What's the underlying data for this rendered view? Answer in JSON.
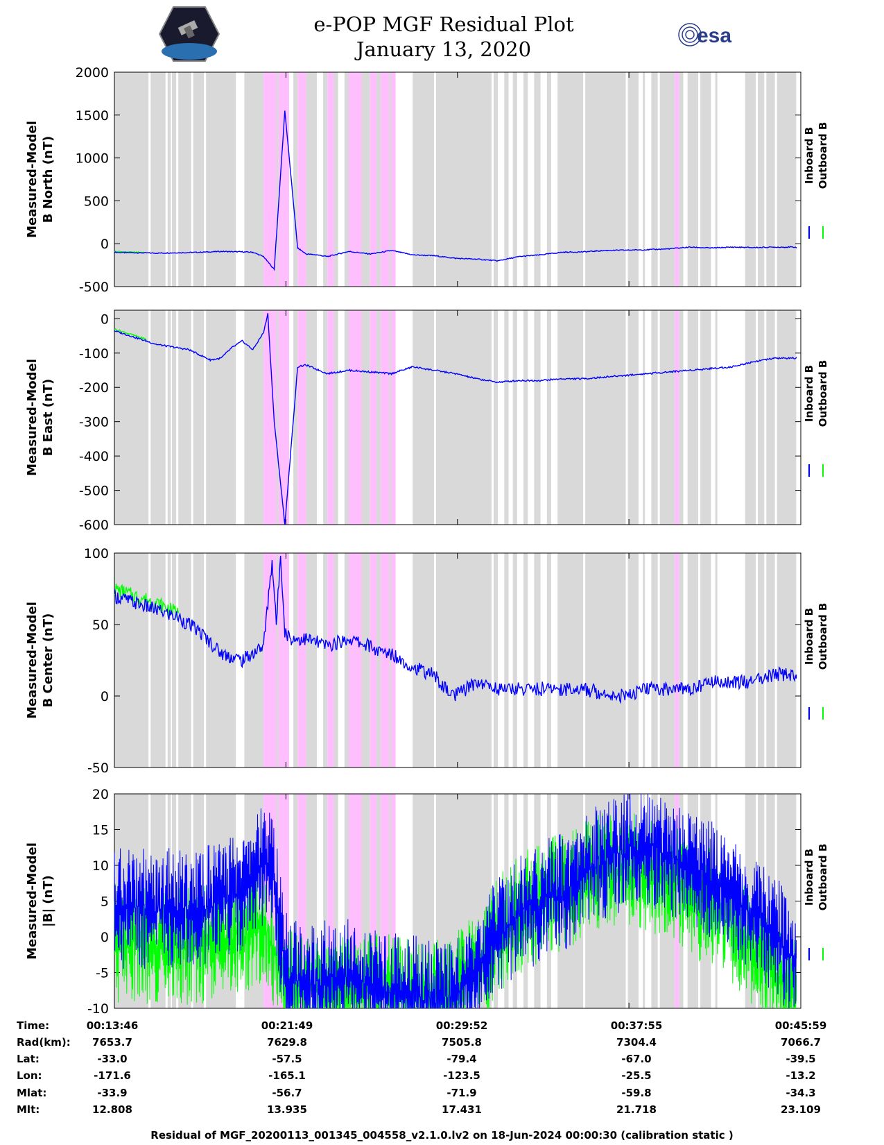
{
  "header": {
    "title_line1": "e-POP MGF Residual Plot",
    "title_line2": "January 13, 2020",
    "esa_text": "esa"
  },
  "colors": {
    "inboard": "#0000ff",
    "outboard": "#00ff00",
    "gap_shade": "#d9d9d9",
    "event_shade": "#ffbfff",
    "axes": "#000000"
  },
  "chart_data": [
    {
      "type": "line",
      "ylabel_line1": "Measured-Model",
      "ylabel_line2": "B North (nT)",
      "ylim": [
        -500,
        2000
      ],
      "yticks": [
        -500,
        0,
        500,
        1000,
        1500,
        2000
      ],
      "legend": [
        "Inboard B",
        "Outboard B"
      ],
      "series": [
        {
          "name": "Inboard B",
          "x": [
            0,
            0.5,
            1,
            2,
            3,
            4,
            5,
            6,
            6.5,
            7,
            7.5,
            8,
            8.6,
            9,
            9.5,
            10,
            11,
            12,
            13,
            14,
            15,
            16,
            17,
            18,
            19,
            20,
            21,
            22,
            23,
            24,
            25,
            26,
            27,
            28,
            29,
            30,
            31,
            32
          ],
          "values": [
            -100,
            -105,
            -105,
            -110,
            -105,
            -100,
            -90,
            -95,
            -100,
            -150,
            -300,
            1550,
            -50,
            -120,
            -130,
            -150,
            -90,
            -120,
            -80,
            -130,
            -140,
            -170,
            -180,
            -200,
            -150,
            -130,
            -100,
            -95,
            -80,
            -75,
            -70,
            -60,
            -40,
            -50,
            -40,
            -45,
            -40,
            -40
          ]
        },
        {
          "name": "Outboard B",
          "x": [
            0,
            0.5,
            1,
            1.4
          ],
          "values": [
            -90,
            -95,
            -100,
            -100
          ]
        }
      ]
    },
    {
      "type": "line",
      "ylabel_line1": "Measured-Model",
      "ylabel_line2": "B East (nT)",
      "ylim": [
        -600,
        25
      ],
      "yticks": [
        -600,
        -500,
        -400,
        -300,
        -200,
        -100,
        0
      ],
      "legend": [
        "Inboard B",
        "Outboard B"
      ],
      "series": [
        {
          "name": "Inboard B",
          "x": [
            0,
            1,
            2,
            3,
            3.5,
            4,
            4.5,
            5,
            5.5,
            6,
            6.5,
            7,
            7.2,
            7.5,
            8,
            8.6,
            9,
            10,
            11,
            12,
            13,
            14,
            15,
            16,
            17,
            18,
            19,
            20,
            21,
            22,
            23,
            24,
            25,
            26,
            27,
            28,
            29,
            30,
            31,
            32
          ],
          "values": [
            -35,
            -55,
            -75,
            -85,
            -90,
            -105,
            -120,
            -115,
            -85,
            -65,
            -90,
            -40,
            15,
            -300,
            -600,
            -140,
            -135,
            -160,
            -150,
            -155,
            -160,
            -140,
            -150,
            -160,
            -175,
            -185,
            -180,
            -180,
            -175,
            -175,
            -170,
            -165,
            -160,
            -155,
            -150,
            -145,
            -140,
            -125,
            -115,
            -115
          ]
        },
        {
          "name": "Outboard B",
          "x": [
            0,
            1,
            1.5
          ],
          "values": [
            -30,
            -50,
            -60
          ]
        }
      ]
    },
    {
      "type": "line",
      "ylabel_line1": "Measured-Model",
      "ylabel_line2": "B Center (nT)",
      "ylim": [
        -50,
        100
      ],
      "yticks": [
        -50,
        0,
        50,
        100
      ],
      "legend": [
        "Inboard B",
        "Outboard B"
      ],
      "series": [
        {
          "name": "Inboard B",
          "x": [
            0,
            1,
            2,
            3,
            4,
            5,
            6,
            7,
            7.4,
            7.6,
            7.8,
            8,
            8.3,
            9,
            10,
            11,
            12,
            12.5,
            13,
            14,
            15,
            15.5,
            16,
            17,
            18,
            19,
            20,
            21,
            22,
            23,
            24,
            25,
            26,
            27,
            28,
            29,
            30,
            31,
            32
          ],
          "values": [
            70,
            65,
            60,
            55,
            45,
            30,
            25,
            35,
            95,
            50,
            100,
            45,
            40,
            40,
            35,
            40,
            35,
            30,
            30,
            20,
            15,
            5,
            0,
            10,
            5,
            5,
            5,
            5,
            5,
            2,
            0,
            5,
            5,
            5,
            10,
            10,
            10,
            15,
            15
          ]
        },
        {
          "name": "Outboard B",
          "x": [
            0,
            1,
            2,
            3
          ],
          "values": [
            75,
            70,
            65,
            58
          ]
        }
      ]
    },
    {
      "type": "line",
      "ylabel_line1": "Measured-Model",
      "ylabel_line2": "|B| (nT)",
      "ylim": [
        -10,
        20
      ],
      "yticks": [
        -10,
        -5,
        0,
        5,
        10,
        15,
        20
      ],
      "legend": [
        "Inboard B",
        "Outboard B"
      ],
      "series": [
        {
          "name": "Inboard B",
          "x": [
            0,
            2,
            4,
            6,
            7,
            7.5,
            8,
            9,
            10,
            11,
            12,
            13,
            14,
            15,
            16,
            17,
            18,
            19,
            20,
            21,
            22,
            22.5,
            23,
            24,
            25,
            26,
            27,
            28,
            29,
            30,
            31,
            32
          ],
          "values": [
            4,
            4,
            4,
            6,
            10,
            8,
            -5,
            -7,
            -6,
            -6,
            -7,
            -8,
            -8,
            -9,
            -8,
            -5,
            0,
            3,
            5,
            6,
            8,
            10,
            11,
            12,
            13,
            11,
            10,
            8,
            6,
            3,
            0,
            -3
          ]
        },
        {
          "name": "Outboard B",
          "x": [
            0,
            2,
            4,
            6,
            7,
            8,
            9,
            10,
            11,
            12,
            13,
            14,
            15,
            16,
            17,
            18,
            19,
            20,
            21,
            22,
            23,
            24,
            25,
            26,
            27,
            28,
            29,
            30,
            31,
            32
          ],
          "values": [
            -1,
            -1,
            -1,
            0,
            2,
            -6,
            -8,
            -8,
            -8,
            -8,
            -8,
            -9,
            -9,
            -8,
            -5,
            0,
            3,
            5,
            6,
            8,
            10,
            10,
            9,
            8,
            6,
            4,
            2,
            -2,
            -6,
            -9
          ]
        }
      ]
    }
  ],
  "ephemeris": {
    "labels": [
      "Time:",
      "Rad(km):",
      "Lat:",
      "Lon:",
      "Mlat:",
      "Mlt:"
    ],
    "columns": [
      {
        "time": "00:13:46",
        "rad": "7653.7",
        "lat": "-33.0",
        "lon": "-171.6",
        "mlat": "-33.9",
        "mlt": "12.808"
      },
      {
        "time": "00:21:49",
        "rad": "7629.8",
        "lat": "-57.5",
        "lon": "-165.1",
        "mlat": "-56.7",
        "mlt": "13.935"
      },
      {
        "time": "00:29:52",
        "rad": "7505.8",
        "lat": "-79.4",
        "lon": "-123.5",
        "mlat": "-71.9",
        "mlt": "17.431"
      },
      {
        "time": "00:37:55",
        "rad": "7304.4",
        "lat": "-67.0",
        "lon": "-25.5",
        "mlat": "-59.8",
        "mlt": "21.718"
      },
      {
        "time": "00:45:59",
        "rad": "7066.7",
        "lat": "-39.5",
        "lon": "-13.2",
        "mlat": "-34.3",
        "mlt": "23.109"
      }
    ]
  },
  "footer": "Residual of MGF_20200113_001345_004558_v2.1.0.lv2 on 18-Jun-2024 00:00:30 (calibration static )"
}
